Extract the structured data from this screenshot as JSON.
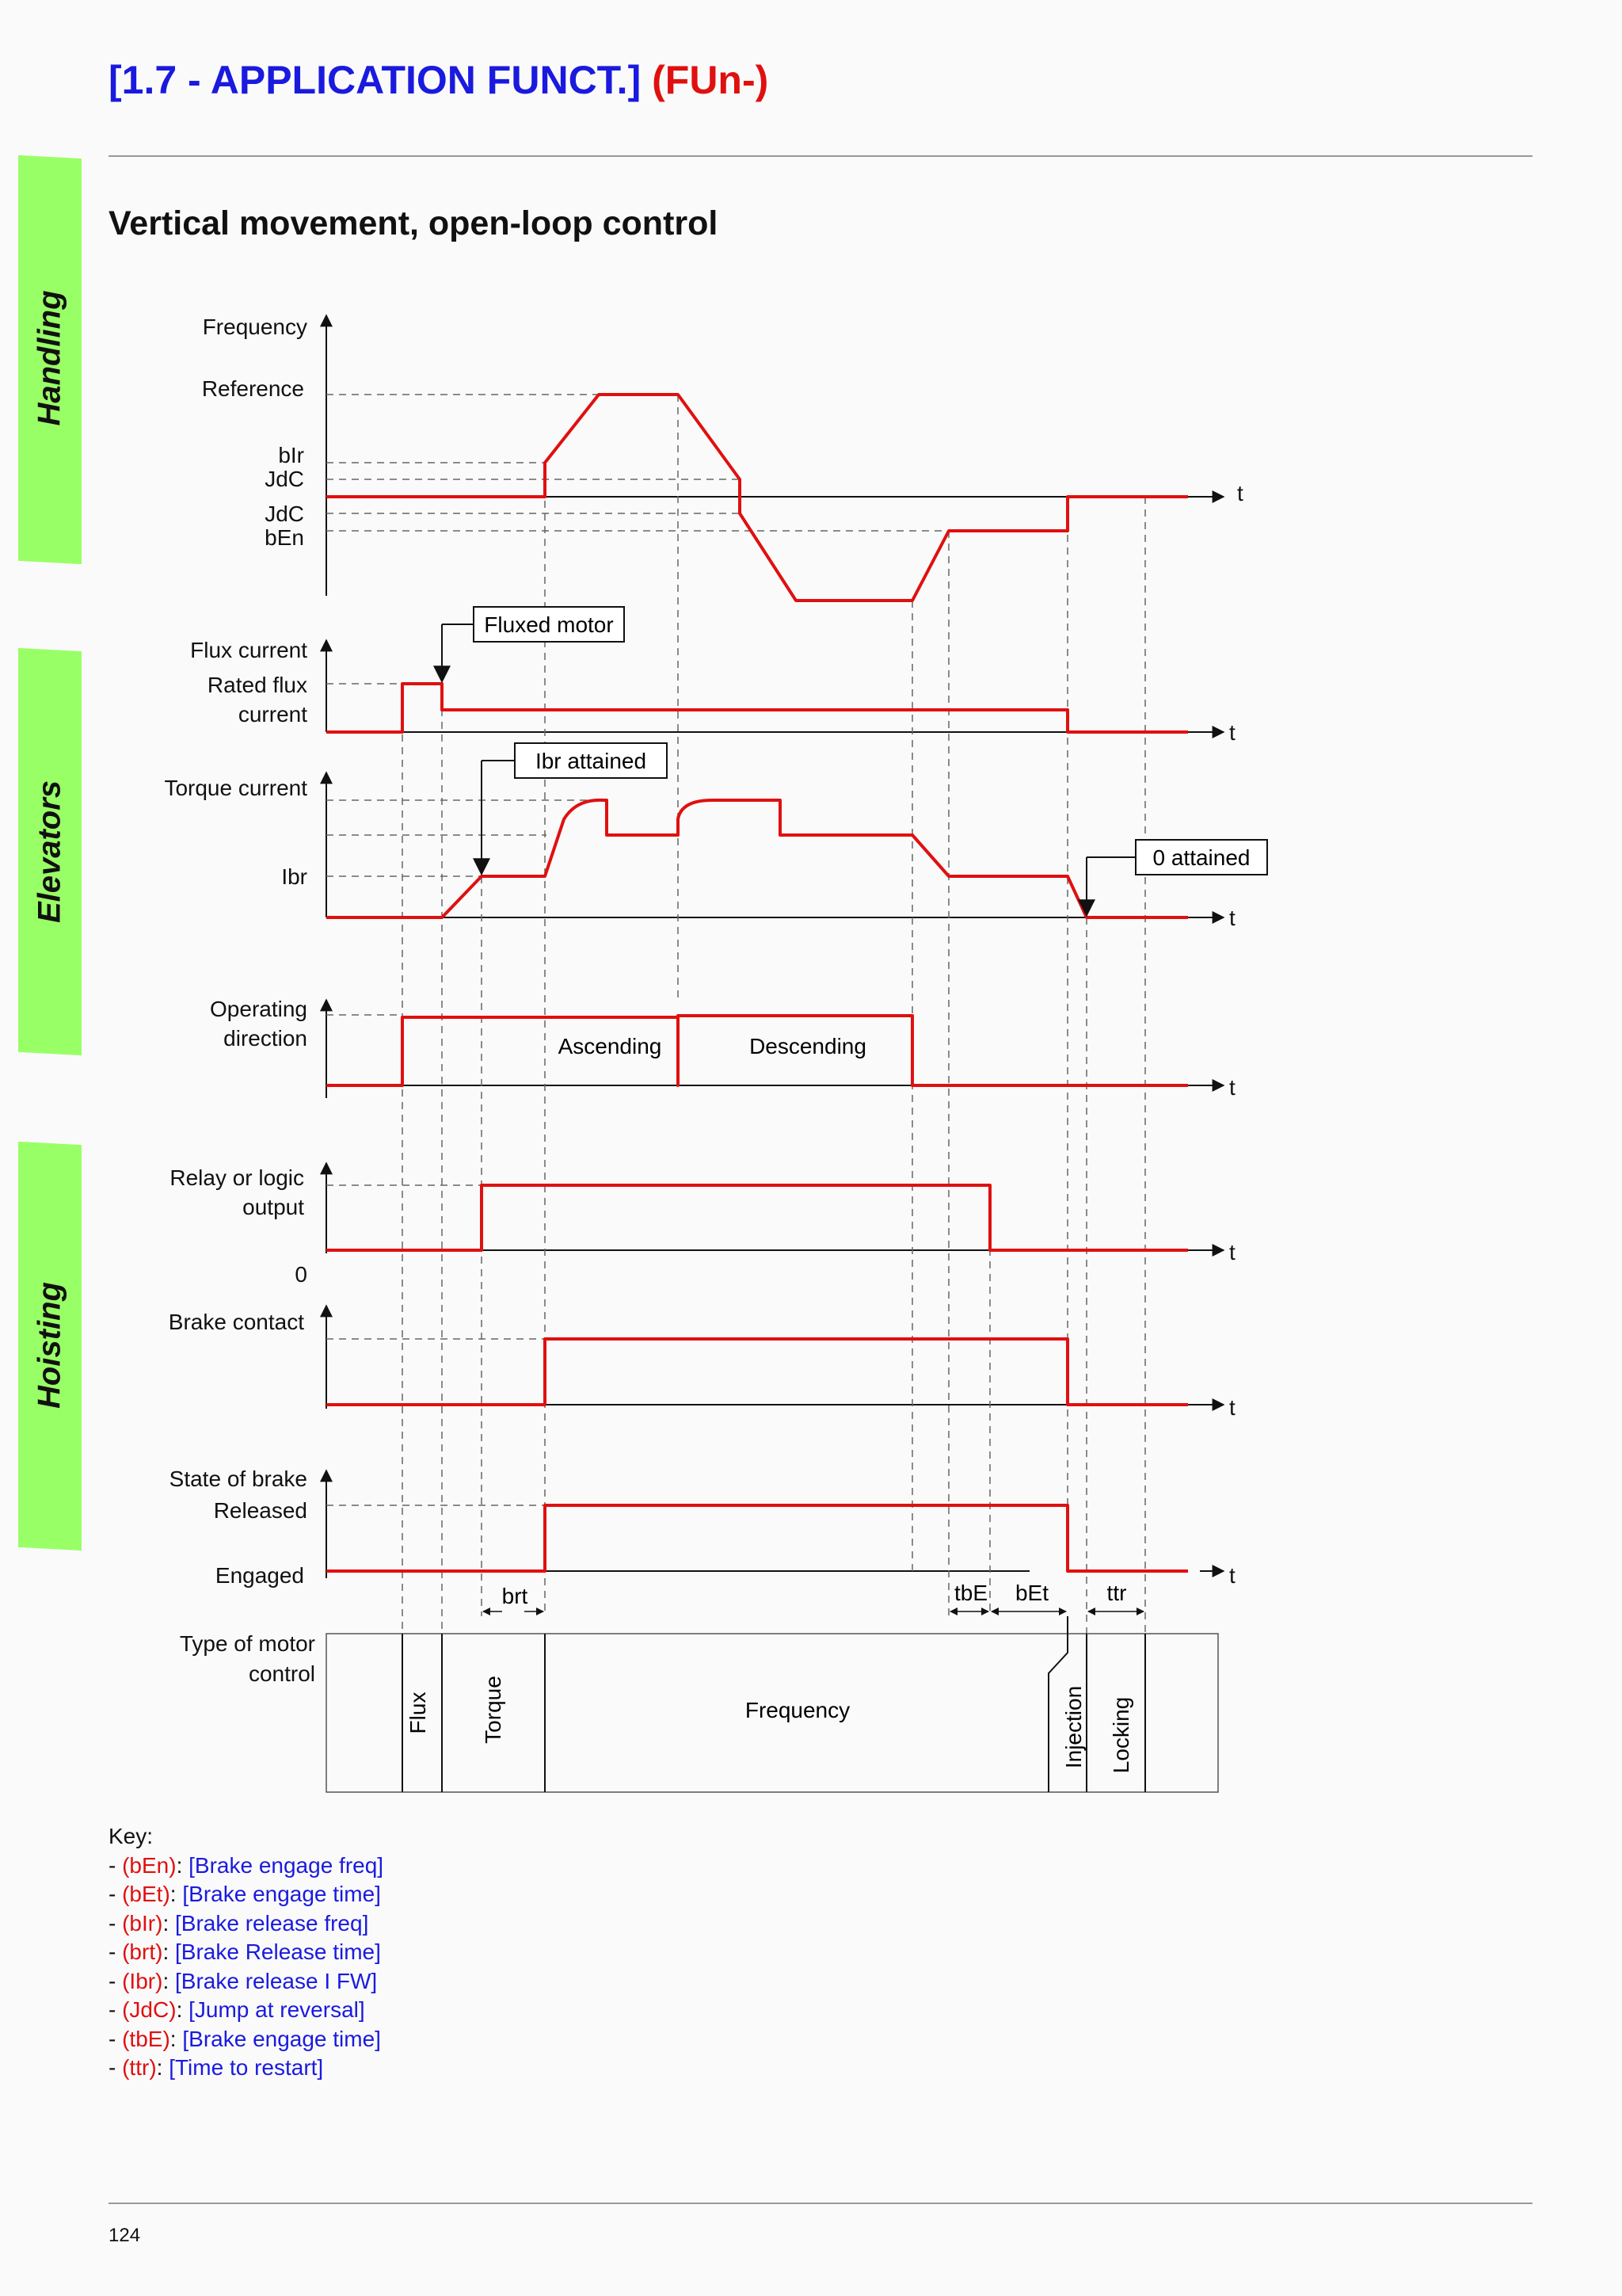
{
  "header": {
    "title": "[1.7 - APPLICATION FUNCT.]",
    "code": "(FUn-)"
  },
  "section_title": "Vertical movement, open-loop control",
  "side_tabs": [
    "Handling",
    "Elevators",
    "Hoisting"
  ],
  "axis_labels": {
    "frequency": "Frequency",
    "reference": "Reference",
    "blr": "bIr",
    "jdc_pos": "JdC",
    "jdc_neg": "JdC",
    "ben": "bEn",
    "flux_current": "Flux current",
    "rated_flux_1": "Rated flux",
    "rated_flux_2": "current",
    "torque_current": "Torque current",
    "ibr": "Ibr",
    "op_dir_1": "Operating",
    "op_dir_2": "direction",
    "relay_1": "Relay or logic",
    "relay_2": "output",
    "zero": "0",
    "brake_contact": "Brake contact",
    "brake_state": "State of brake",
    "released": "Released",
    "engaged": "Engaged",
    "motor_ctrl_1": "Type of motor",
    "motor_ctrl_2": "control",
    "t": "t"
  },
  "callouts": {
    "fluxed_motor": "Fluxed motor",
    "ibr_attained": "Ibr attained",
    "zero_attained": "0 attained"
  },
  "direction_labels": {
    "ascending": "Ascending",
    "descending": "Descending"
  },
  "timing_labels": {
    "brt": "brt",
    "tbe": "tbE",
    "bet": "bEt",
    "ttr": "ttr"
  },
  "motor_control_phases": {
    "flux": "Flux",
    "torque": "Torque",
    "frequency": "Frequency",
    "injection": "Injection",
    "locking": "Locking"
  },
  "colors": {
    "signal": "#e01010",
    "blue_text": "#1a1adf",
    "red_text": "#e01010",
    "tab_green": "#99ff66"
  },
  "key": {
    "title": "Key:",
    "items": [
      {
        "code": "(bEn)",
        "desc": "[Brake engage freq]"
      },
      {
        "code": "(bEt)",
        "desc": "[Brake engage time]"
      },
      {
        "code": "(bIr)",
        "desc": "[Brake release freq]"
      },
      {
        "code": "(brt)",
        "desc": "[Brake Release time]"
      },
      {
        "code": "(Ibr)",
        "desc": "[Brake release I FW]"
      },
      {
        "code": "(JdC)",
        "desc": "[Jump at reversal]"
      },
      {
        "code": "(tbE)",
        "desc": "[Brake engage time]"
      },
      {
        "code": "(ttr)",
        "desc": "[Time to restart]"
      }
    ]
  },
  "page_number": "124"
}
